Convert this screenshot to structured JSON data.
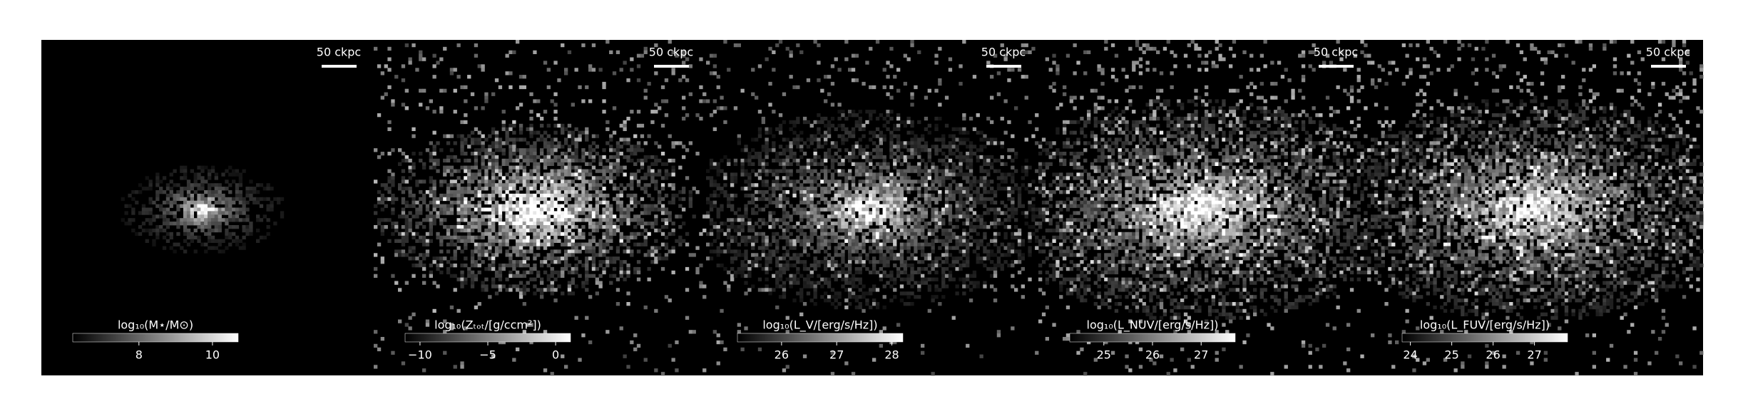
{
  "chart_data": [
    {
      "type": "image",
      "scalebar": "50 ckpc",
      "colorbar_label": "log₁₀(M⋆/M⊙)",
      "clim": [
        6.2,
        10.7
      ],
      "ticks": [
        8,
        10
      ]
    },
    {
      "type": "image",
      "scalebar": "50 ckpc",
      "colorbar_label": "log₁₀(Zₜₒₜ/[g/ccm²])",
      "clim": [
        -11.1,
        1.1
      ],
      "ticks": [
        {
          "value": -10,
          "label": "−10"
        },
        {
          "value": -5,
          "label": "−5"
        },
        0
      ]
    },
    {
      "type": "image",
      "scalebar": "50 ckpc",
      "colorbar_label": "log₁₀(L_V/[erg/s/Hz])",
      "clim": [
        25.2,
        28.2
      ],
      "ticks": [
        26,
        27,
        28
      ]
    },
    {
      "type": "image",
      "scalebar": "50 ckpc",
      "colorbar_label": "log₁₀(L_NUV/[erg/s/Hz])",
      "clim": [
        24.3,
        27.7
      ],
      "ticks": [
        25,
        26,
        27
      ]
    },
    {
      "type": "image",
      "scalebar": "50 ckpc",
      "colorbar_label": "log₁₀(L_FUV/[erg/s/Hz])",
      "clim": [
        23.8,
        27.8
      ],
      "ticks": [
        24,
        25,
        26,
        27
      ]
    }
  ]
}
